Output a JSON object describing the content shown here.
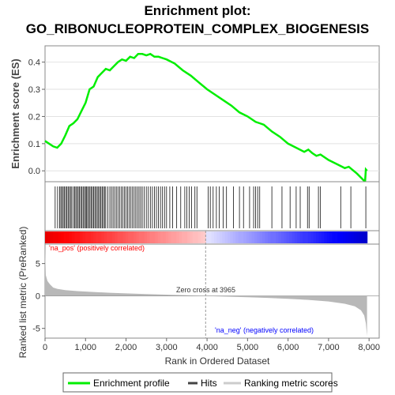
{
  "chart_data": {
    "type": "line",
    "title_line1": "Enrichment plot:",
    "title_line2": "GO_RIBONUCLEOPROTEIN_COMPLEX_BIOGENESIS",
    "ylabel_es": "Enrichment score (ES)",
    "ylabel_metric": "Ranked list metric (PreRanked)",
    "xlabel": "Rank in Ordered Dataset",
    "x_ticks": [
      "0",
      "1,000",
      "2,000",
      "3,000",
      "4,000",
      "5,000",
      "6,000",
      "7,000",
      "8,000"
    ],
    "x_tick_values": [
      0,
      1000,
      2000,
      3000,
      4000,
      5000,
      6000,
      7000,
      8000
    ],
    "es_ticks": [
      "0.0",
      "0.1",
      "0.2",
      "0.3",
      "0.4"
    ],
    "es_tick_values": [
      0.0,
      0.1,
      0.2,
      0.3,
      0.4
    ],
    "metric_ticks": [
      "5",
      "0",
      "-5"
    ],
    "metric_tick_values": [
      5,
      0,
      -5
    ],
    "xlim": [
      0,
      8250
    ],
    "es_ylim": [
      -0.04,
      0.46
    ],
    "metric_ylim": [
      -6.5,
      8
    ],
    "zero_cross_label": "Zero cross at 3965",
    "zero_cross_rank": 3965,
    "pos_label": "'na_pos' (positively correlated)",
    "neg_label": "'na_neg' (negatively correlated)",
    "colors": {
      "enrichment": "#00ee00",
      "hits": "#000000",
      "metric": "#b0b0b0",
      "pos_text": "#ff0000",
      "neg_text": "#0000ff"
    },
    "enrichment_profile": [
      [
        0,
        0.11
      ],
      [
        100,
        0.1
      ],
      [
        200,
        0.09
      ],
      [
        300,
        0.085
      ],
      [
        400,
        0.1
      ],
      [
        500,
        0.13
      ],
      [
        600,
        0.165
      ],
      [
        700,
        0.175
      ],
      [
        800,
        0.19
      ],
      [
        900,
        0.22
      ],
      [
        1000,
        0.25
      ],
      [
        1100,
        0.3
      ],
      [
        1200,
        0.31
      ],
      [
        1300,
        0.345
      ],
      [
        1400,
        0.36
      ],
      [
        1500,
        0.375
      ],
      [
        1600,
        0.37
      ],
      [
        1700,
        0.385
      ],
      [
        1800,
        0.4
      ],
      [
        1900,
        0.41
      ],
      [
        2000,
        0.405
      ],
      [
        2100,
        0.42
      ],
      [
        2200,
        0.415
      ],
      [
        2300,
        0.43
      ],
      [
        2400,
        0.43
      ],
      [
        2500,
        0.425
      ],
      [
        2600,
        0.43
      ],
      [
        2700,
        0.42
      ],
      [
        2800,
        0.42
      ],
      [
        2900,
        0.415
      ],
      [
        3000,
        0.41
      ],
      [
        3200,
        0.395
      ],
      [
        3400,
        0.37
      ],
      [
        3600,
        0.35
      ],
      [
        3800,
        0.325
      ],
      [
        4000,
        0.3
      ],
      [
        4200,
        0.28
      ],
      [
        4400,
        0.26
      ],
      [
        4600,
        0.24
      ],
      [
        4800,
        0.215
      ],
      [
        5000,
        0.2
      ],
      [
        5200,
        0.18
      ],
      [
        5300,
        0.175
      ],
      [
        5400,
        0.17
      ],
      [
        5600,
        0.145
      ],
      [
        5800,
        0.125
      ],
      [
        6000,
        0.1
      ],
      [
        6200,
        0.085
      ],
      [
        6400,
        0.07
      ],
      [
        6500,
        0.078
      ],
      [
        6600,
        0.065
      ],
      [
        6700,
        0.055
      ],
      [
        6800,
        0.06
      ],
      [
        7000,
        0.04
      ],
      [
        7200,
        0.025
      ],
      [
        7400,
        0.01
      ],
      [
        7500,
        0.015
      ],
      [
        7700,
        -0.01
      ],
      [
        7900,
        -0.04
      ],
      [
        7920,
        0.005
      ],
      [
        7950,
        0.0
      ]
    ],
    "hits": [
      250,
      310,
      360,
      390,
      420,
      450,
      480,
      510,
      540,
      570,
      600,
      630,
      660,
      700,
      730,
      760,
      790,
      820,
      850,
      880,
      910,
      940,
      970,
      1000,
      1020,
      1050,
      1080,
      1110,
      1140,
      1170,
      1200,
      1230,
      1260,
      1290,
      1320,
      1350,
      1380,
      1410,
      1440,
      1470,
      1500,
      1550,
      1600,
      1640,
      1680,
      1720,
      1760,
      1800,
      1840,
      1880,
      1920,
      1960,
      2000,
      2040,
      2080,
      2120,
      2160,
      2200,
      2240,
      2280,
      2320,
      2360,
      2400,
      2450,
      2500,
      2550,
      2600,
      2650,
      2700,
      2750,
      2800,
      2850,
      2900,
      2950,
      3000,
      3080,
      3150,
      3250,
      3350,
      3450,
      3500,
      3560,
      3620,
      3700,
      3750,
      4030,
      4080,
      4150,
      4230,
      4300,
      4400,
      4480,
      4650,
      4800,
      4900,
      5050,
      5150,
      5200,
      5250,
      5300,
      5600,
      5850,
      6050,
      6200,
      6300,
      6480,
      6520,
      6750,
      6800,
      7300,
      7550,
      7920
    ],
    "metric_profile": [
      [
        0,
        7.5
      ],
      [
        20,
        3.2
      ],
      [
        60,
        2.3
      ],
      [
        120,
        1.8
      ],
      [
        200,
        1.3
      ],
      [
        300,
        1.1
      ],
      [
        500,
        0.9
      ],
      [
        800,
        0.75
      ],
      [
        1200,
        0.62
      ],
      [
        1600,
        0.5
      ],
      [
        2000,
        0.4
      ],
      [
        2500,
        0.3
      ],
      [
        3000,
        0.2
      ],
      [
        3500,
        0.1
      ],
      [
        3965,
        0.0
      ],
      [
        4500,
        -0.1
      ],
      [
        5000,
        -0.2
      ],
      [
        5500,
        -0.3
      ],
      [
        6000,
        -0.45
      ],
      [
        6500,
        -0.6
      ],
      [
        7000,
        -0.85
      ],
      [
        7400,
        -1.2
      ],
      [
        7650,
        -1.6
      ],
      [
        7800,
        -2.2
      ],
      [
        7880,
        -3.0
      ],
      [
        7920,
        -4.2
      ],
      [
        7950,
        -6.2
      ]
    ]
  },
  "legend": {
    "items": [
      {
        "label": "Enrichment profile",
        "color": "#00ee00"
      },
      {
        "label": "Hits",
        "color": "#444444"
      },
      {
        "label": "Ranking metric scores",
        "color": "#cccccc"
      }
    ]
  }
}
